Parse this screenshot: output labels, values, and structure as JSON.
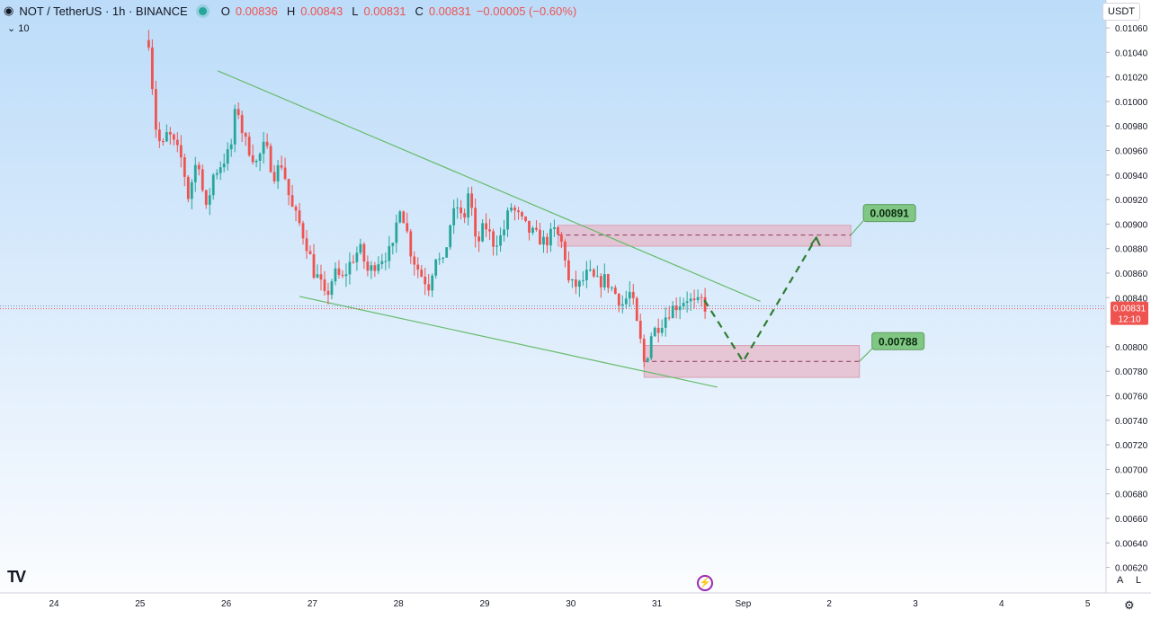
{
  "header": {
    "symbol": "NOT / TetherUS · 1h · BINANCE",
    "open_label": "O",
    "open": "0.00836",
    "high_label": "H",
    "high": "0.00843",
    "low_label": "L",
    "low": "0.00831",
    "close_label": "C",
    "close": "0.00831",
    "change": "−0.00005 (−0.60%)",
    "volume_toggle": "10"
  },
  "currency": "USDT",
  "icons": {
    "logo": "TV",
    "replay": "bolt-icon",
    "settings": "gear-icon"
  },
  "axis_buttons": {
    "auto": "A",
    "log": "L"
  },
  "colors": {
    "up": "#26a69a",
    "down": "#ef5350",
    "trendline": "#66bb6a",
    "zone": "#e7b7c8",
    "projection": "#2e7d32",
    "label_bg": "#81c784"
  },
  "chart_data": {
    "type": "candlestick",
    "title": "NOT / TetherUS · 1h · BINANCE",
    "x_ticks": [
      "24",
      "25",
      "26",
      "27",
      "28",
      "29",
      "30",
      "31",
      "Sep",
      "2",
      "3",
      "4",
      "5"
    ],
    "y_ticks": [
      "0.01060",
      "0.01040",
      "0.01020",
      "0.01000",
      "0.00980",
      "0.00960",
      "0.00940",
      "0.00920",
      "0.00900",
      "0.00880",
      "0.00860",
      "0.00840",
      "0.00800",
      "0.00780",
      "0.00760",
      "0.00740",
      "0.00720",
      "0.00700",
      "0.00680",
      "0.00660",
      "0.00640",
      "0.00620"
    ],
    "ylim": [
      0.0062,
      0.0107
    ],
    "current_price": {
      "value": "0.00831",
      "countdown": "12:10"
    },
    "annotations": [
      {
        "type": "zone",
        "center": 0.00891,
        "from": 0.00882,
        "to": 0.00899,
        "start_day": 29.85,
        "end_day": 33.25,
        "label": "0.00891"
      },
      {
        "type": "zone",
        "center": 0.00788,
        "from": 0.00775,
        "to": 0.00801,
        "start_day": 30.85,
        "end_day": 33.35,
        "label": "0.00788"
      },
      {
        "type": "trendline",
        "points": [
          [
            25.9,
            0.01025
          ],
          [
            32.2,
            0.00837
          ]
        ]
      },
      {
        "type": "trendline",
        "points": [
          [
            26.85,
            0.00841
          ],
          [
            31.7,
            0.00767
          ]
        ]
      },
      {
        "type": "projection",
        "points": [
          [
            31.55,
            0.00838
          ],
          [
            32.0,
            0.00788
          ],
          [
            32.85,
            0.00889
          ]
        ]
      }
    ],
    "path": [
      [
        25.1,
        0.0105
      ],
      [
        25.18,
        0.0098
      ],
      [
        25.25,
        0.0096
      ],
      [
        25.32,
        0.00975
      ],
      [
        25.5,
        0.0095
      ],
      [
        25.55,
        0.0092
      ],
      [
        25.65,
        0.0095
      ],
      [
        25.7,
        0.0095
      ],
      [
        25.75,
        0.00905
      ],
      [
        25.85,
        0.0094
      ],
      [
        25.95,
        0.0095
      ],
      [
        26.05,
        0.0096
      ],
      [
        26.12,
        0.01
      ],
      [
        26.2,
        0.0097
      ],
      [
        26.35,
        0.0095
      ],
      [
        26.45,
        0.00965
      ],
      [
        26.55,
        0.0094
      ],
      [
        26.65,
        0.0095
      ],
      [
        26.75,
        0.00915
      ],
      [
        26.85,
        0.009
      ],
      [
        26.95,
        0.0088
      ],
      [
        27.02,
        0.0086
      ],
      [
        27.08,
        0.00855
      ],
      [
        27.15,
        0.00838
      ],
      [
        27.25,
        0.0086
      ],
      [
        27.35,
        0.00855
      ],
      [
        27.45,
        0.0087
      ],
      [
        27.55,
        0.0088
      ],
      [
        27.65,
        0.0086
      ],
      [
        27.75,
        0.0087
      ],
      [
        27.85,
        0.00875
      ],
      [
        27.95,
        0.0088
      ],
      [
        28.0,
        0.0092
      ],
      [
        28.08,
        0.009
      ],
      [
        28.15,
        0.00875
      ],
      [
        28.25,
        0.0086
      ],
      [
        28.35,
        0.0085
      ],
      [
        28.45,
        0.0088
      ],
      [
        28.5,
        0.0086
      ],
      [
        28.6,
        0.009
      ],
      [
        28.68,
        0.00915
      ],
      [
        28.75,
        0.009
      ],
      [
        28.82,
        0.0093
      ],
      [
        28.9,
        0.0088
      ],
      [
        29.0,
        0.009
      ],
      [
        29.1,
        0.00885
      ],
      [
        29.2,
        0.0089
      ],
      [
        29.3,
        0.00915
      ],
      [
        29.4,
        0.00905
      ],
      [
        29.5,
        0.00895
      ],
      [
        29.6,
        0.0089
      ],
      [
        29.7,
        0.00885
      ],
      [
        29.82,
        0.00895
      ],
      [
        29.92,
        0.0088
      ],
      [
        29.98,
        0.0085
      ],
      [
        30.1,
        0.0085
      ],
      [
        30.2,
        0.0086
      ],
      [
        30.3,
        0.00852
      ],
      [
        30.4,
        0.00855
      ],
      [
        30.5,
        0.00845
      ],
      [
        30.6,
        0.00835
      ],
      [
        30.7,
        0.00845
      ],
      [
        30.75,
        0.00823
      ],
      [
        30.82,
        0.008
      ],
      [
        30.86,
        0.00783
      ],
      [
        30.93,
        0.0081
      ],
      [
        31.05,
        0.0082
      ],
      [
        31.15,
        0.0083
      ],
      [
        31.25,
        0.00835
      ],
      [
        31.35,
        0.0084
      ],
      [
        31.45,
        0.00833
      ],
      [
        31.52,
        0.00838
      ],
      [
        31.57,
        0.00831
      ]
    ]
  }
}
